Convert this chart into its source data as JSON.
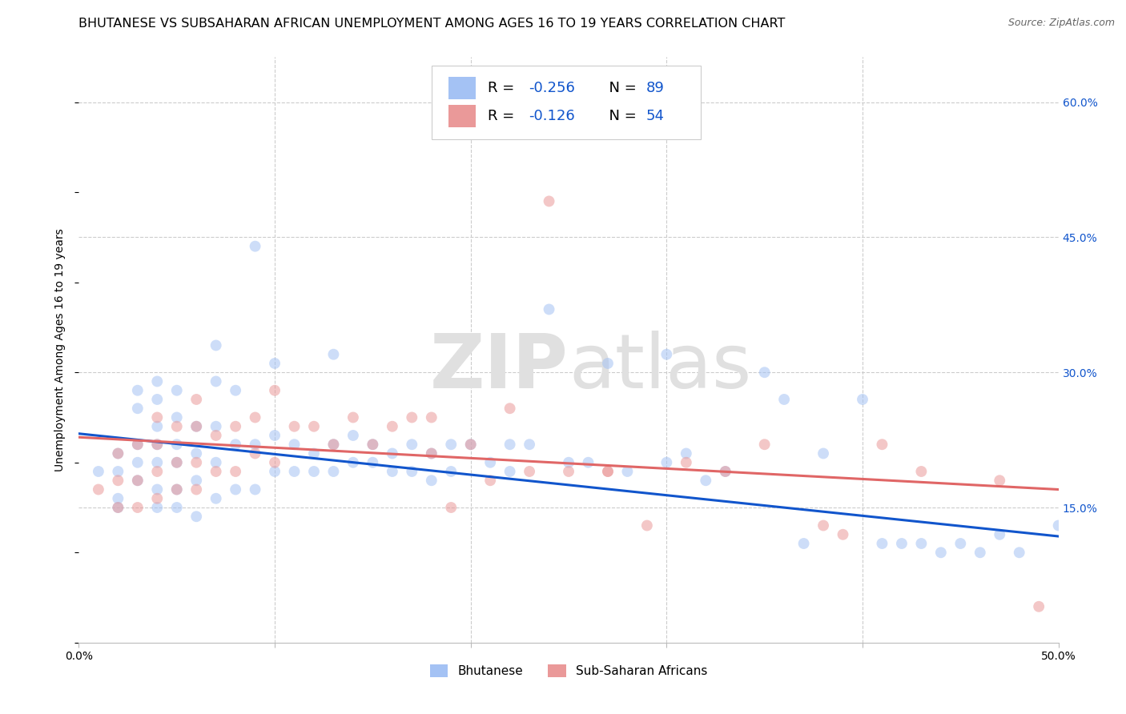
{
  "title": "BHUTANESE VS SUBSAHARAN AFRICAN UNEMPLOYMENT AMONG AGES 16 TO 19 YEARS CORRELATION CHART",
  "source": "Source: ZipAtlas.com",
  "ylabel": "Unemployment Among Ages 16 to 19 years",
  "xlim": [
    0.0,
    0.5
  ],
  "ylim": [
    0.0,
    0.65
  ],
  "xticks": [
    0.0,
    0.1,
    0.2,
    0.3,
    0.4,
    0.5
  ],
  "xtick_labels": [
    "0.0%",
    "",
    "",
    "",
    "",
    "50.0%"
  ],
  "yticks_right": [
    0.15,
    0.3,
    0.45,
    0.6
  ],
  "ytick_labels_right": [
    "15.0%",
    "30.0%",
    "45.0%",
    "60.0%"
  ],
  "legend1_R": "-0.256",
  "legend1_N": "89",
  "legend2_R": "-0.126",
  "legend2_N": "54",
  "blue_color": "#a4c2f4",
  "pink_color": "#ea9999",
  "blue_line_color": "#1155cc",
  "pink_line_color": "#e06666",
  "number_color": "#1155cc",
  "watermark_part1": "ZIP",
  "watermark_part2": "atlas",
  "background_color": "#ffffff",
  "grid_color": "#cccccc",
  "title_fontsize": 11.5,
  "source_fontsize": 9,
  "axis_label_fontsize": 10,
  "tick_fontsize": 10,
  "legend_fontsize": 13,
  "marker_size": 100,
  "marker_alpha": 0.55,
  "watermark_color": "#e0e0e0",
  "watermark_fontsize": 68,
  "blue_trend_y_start": 0.232,
  "blue_trend_y_end": 0.118,
  "pink_trend_y_start": 0.228,
  "pink_trend_y_end": 0.17,
  "blue_scatter_x": [
    0.01,
    0.02,
    0.02,
    0.02,
    0.02,
    0.03,
    0.03,
    0.03,
    0.03,
    0.03,
    0.04,
    0.04,
    0.04,
    0.04,
    0.04,
    0.04,
    0.04,
    0.05,
    0.05,
    0.05,
    0.05,
    0.05,
    0.05,
    0.06,
    0.06,
    0.06,
    0.06,
    0.07,
    0.07,
    0.07,
    0.07,
    0.07,
    0.08,
    0.08,
    0.08,
    0.09,
    0.09,
    0.09,
    0.1,
    0.1,
    0.1,
    0.11,
    0.11,
    0.12,
    0.12,
    0.13,
    0.13,
    0.13,
    0.14,
    0.14,
    0.15,
    0.15,
    0.16,
    0.16,
    0.17,
    0.17,
    0.18,
    0.18,
    0.19,
    0.19,
    0.2,
    0.21,
    0.22,
    0.22,
    0.23,
    0.24,
    0.25,
    0.26,
    0.27,
    0.28,
    0.3,
    0.3,
    0.31,
    0.32,
    0.33,
    0.35,
    0.36,
    0.37,
    0.38,
    0.4,
    0.41,
    0.42,
    0.43,
    0.44,
    0.45,
    0.46,
    0.47,
    0.48,
    0.5
  ],
  "blue_scatter_y": [
    0.19,
    0.16,
    0.19,
    0.21,
    0.15,
    0.18,
    0.2,
    0.22,
    0.26,
    0.28,
    0.15,
    0.17,
    0.2,
    0.22,
    0.24,
    0.27,
    0.29,
    0.15,
    0.17,
    0.2,
    0.22,
    0.25,
    0.28,
    0.14,
    0.18,
    0.21,
    0.24,
    0.16,
    0.2,
    0.24,
    0.29,
    0.33,
    0.17,
    0.22,
    0.28,
    0.17,
    0.22,
    0.44,
    0.19,
    0.23,
    0.31,
    0.19,
    0.22,
    0.19,
    0.21,
    0.19,
    0.22,
    0.32,
    0.2,
    0.23,
    0.2,
    0.22,
    0.19,
    0.21,
    0.19,
    0.22,
    0.18,
    0.21,
    0.19,
    0.22,
    0.22,
    0.2,
    0.19,
    0.22,
    0.22,
    0.37,
    0.2,
    0.2,
    0.31,
    0.19,
    0.2,
    0.32,
    0.21,
    0.18,
    0.19,
    0.3,
    0.27,
    0.11,
    0.21,
    0.27,
    0.11,
    0.11,
    0.11,
    0.1,
    0.11,
    0.1,
    0.12,
    0.1,
    0.13
  ],
  "pink_scatter_x": [
    0.01,
    0.02,
    0.02,
    0.02,
    0.03,
    0.03,
    0.03,
    0.04,
    0.04,
    0.04,
    0.04,
    0.05,
    0.05,
    0.05,
    0.06,
    0.06,
    0.06,
    0.06,
    0.07,
    0.07,
    0.08,
    0.08,
    0.09,
    0.09,
    0.1,
    0.1,
    0.11,
    0.12,
    0.13,
    0.14,
    0.15,
    0.16,
    0.17,
    0.18,
    0.18,
    0.19,
    0.2,
    0.21,
    0.22,
    0.23,
    0.24,
    0.25,
    0.27,
    0.27,
    0.29,
    0.31,
    0.33,
    0.35,
    0.38,
    0.39,
    0.41,
    0.43,
    0.47,
    0.49
  ],
  "pink_scatter_y": [
    0.17,
    0.15,
    0.18,
    0.21,
    0.15,
    0.18,
    0.22,
    0.16,
    0.19,
    0.22,
    0.25,
    0.17,
    0.2,
    0.24,
    0.17,
    0.2,
    0.24,
    0.27,
    0.19,
    0.23,
    0.19,
    0.24,
    0.21,
    0.25,
    0.2,
    0.28,
    0.24,
    0.24,
    0.22,
    0.25,
    0.22,
    0.24,
    0.25,
    0.21,
    0.25,
    0.15,
    0.22,
    0.18,
    0.26,
    0.19,
    0.49,
    0.19,
    0.19,
    0.19,
    0.13,
    0.2,
    0.19,
    0.22,
    0.13,
    0.12,
    0.22,
    0.19,
    0.18,
    0.04
  ]
}
